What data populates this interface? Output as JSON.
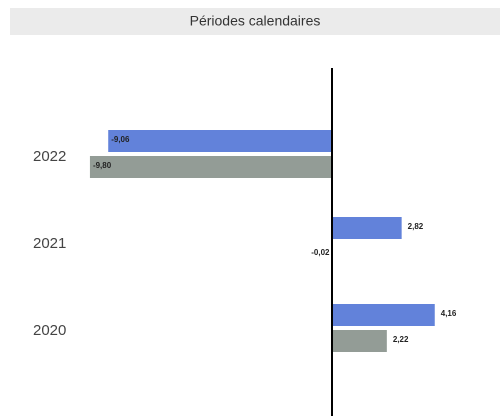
{
  "chart_data": {
    "type": "barh",
    "title": "Périodes calendaires",
    "categories": [
      "2022",
      "2021",
      "2020"
    ],
    "series": [
      {
        "color": "#6282da",
        "values": [
          -9.06,
          2.82,
          4.16
        ],
        "value_labels": [
          "-9,06",
          "2,82",
          "4,16"
        ]
      },
      {
        "color": "#939c96",
        "values": [
          -9.8,
          -0.02,
          2.22
        ],
        "value_labels": [
          "-9,80",
          "-0,02",
          "2,22"
        ]
      }
    ]
  }
}
